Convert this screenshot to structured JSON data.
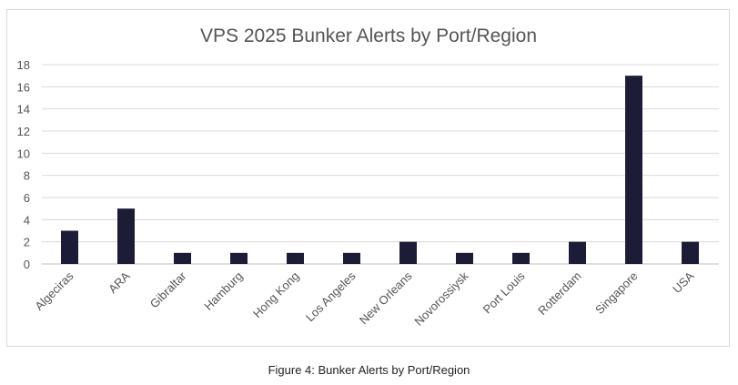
{
  "chart_data": {
    "type": "bar",
    "title": "VPS 2025 Bunker Alerts by Port/Region",
    "xlabel": "",
    "ylabel": "",
    "categories": [
      "Algeciras",
      "ARA",
      "Gibraltar",
      "Hamburg",
      "Hong Kong",
      "Los Angeles",
      "New Orleans",
      "Novorossiysk",
      "Port Louis",
      "Rotterdam",
      "Singapore",
      "USA"
    ],
    "values": [
      3,
      5,
      1,
      1,
      1,
      1,
      2,
      1,
      1,
      2,
      17,
      2
    ],
    "ylim": [
      0,
      18
    ],
    "yticks": [
      0,
      2,
      4,
      6,
      8,
      10,
      12,
      14,
      16,
      18
    ],
    "grid": true,
    "bar_color": "#1c1c36"
  },
  "caption": "Figure 4: Bunker Alerts by Port/Region"
}
